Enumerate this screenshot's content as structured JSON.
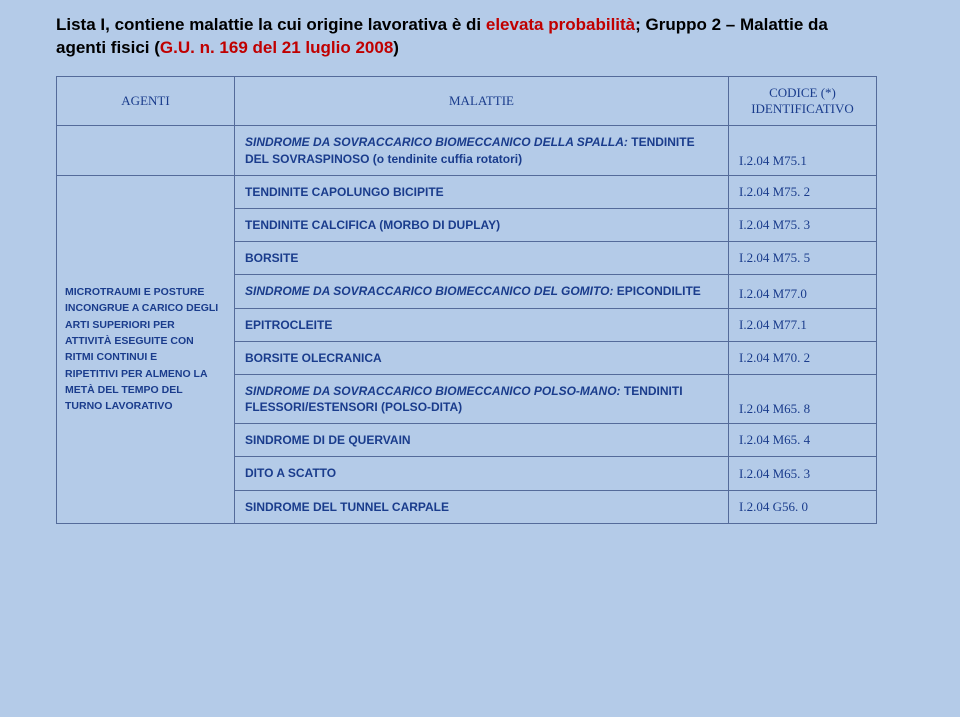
{
  "title": {
    "part1": "Lista I, contiene malattie la cui origine lavorativa è di ",
    "red1": "elevata probabilità",
    "part2": ";   Gruppo 2 – Malattie da agenti fisici ",
    "part3": "(",
    "red2": "G.U. n. 169 del 21 luglio 2008",
    "part4": ")"
  },
  "headers": {
    "agenti": "AGENTI",
    "malattie": "MALATTIE",
    "codice_l1": "CODICE (*)",
    "codice_l2": "IDENTIFICATIVO"
  },
  "agent_lines": [
    "MICROTRAUMI E POSTURE",
    "INCONGRUE A CARICO DEGLI",
    "ARTI SUPERIORI PER",
    "ATTIVITÀ ESEGUITE CON",
    "RITMI CONTINUI E",
    "RIPETITIVI PER ALMENO LA",
    "METÀ DEL TEMPO DEL",
    "TURNO LAVORATIVO"
  ],
  "rows": [
    {
      "malattia_lines": [
        {
          "text": "SINDROME DA SOVRACCARICO BIOMECCANICO  DELLA SPALLA: ",
          "italic": true
        },
        {
          "text": "TENDINITE DEL SOVRASPINOSO (o tendinite cuffia  rotatori)",
          "italic": false
        }
      ],
      "code": "I.2.04 M75.1"
    },
    {
      "malattia": "TENDINITE CAPOLUNGO BICIPITE",
      "code": "I.2.04 M75. 2"
    },
    {
      "malattia": "TENDINITE CALCIFICA (MORBO DI DUPLAY)",
      "code": "I.2.04 M75. 3"
    },
    {
      "malattia": "BORSITE",
      "code": "I.2.04 M75. 5"
    },
    {
      "malattia_lines": [
        {
          "text": "SINDROME DA SOVRACCARICO BIOMECCANICO DEL GOMITO: ",
          "italic": true
        },
        {
          "text": "EPICONDILITE",
          "italic": false
        }
      ],
      "code": "I.2.04 M77.0"
    },
    {
      "malattia": "EPITROCLEITE",
      "code": "I.2.04 M77.1"
    },
    {
      "malattia": "BORSITE OLECRANICA",
      "code": "I.2.04 M70. 2"
    },
    {
      "malattia_lines": [
        {
          "text": "SINDROME DA SOVRACCARICO  BIOMECCANICO POLSO-MANO: ",
          "italic": true
        },
        {
          "text": "TENDINITI FLESSORI/ESTENSORI (POLSO-DITA)",
          "italic": false
        }
      ],
      "code": "I.2.04 M65. 8"
    },
    {
      "malattia": "SINDROME DI DE QUERVAIN",
      "code": "I.2.04 M65. 4"
    },
    {
      "malattia": "DITO A SCATTO",
      "code": "I.2.04 M65. 3"
    },
    {
      "malattia": "SINDROME DEL TUNNEL CARPALE",
      "code": "I.2.04 G56. 0"
    }
  ]
}
